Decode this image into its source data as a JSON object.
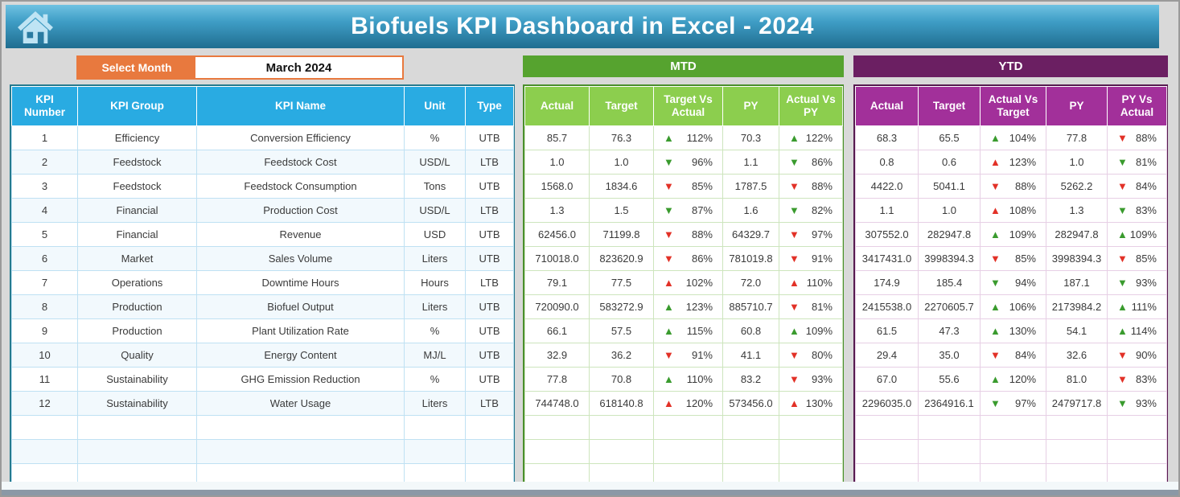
{
  "app": {
    "title": "Biofuels KPI Dashboard in Excel - 2024"
  },
  "month_selector": {
    "label": "Select Month",
    "value": "March 2024"
  },
  "kpi_table": {
    "headers": [
      "KPI Number",
      "KPI Group",
      "KPI Name",
      "Unit",
      "Type"
    ]
  },
  "mtd": {
    "title": "MTD",
    "headers": [
      "Actual",
      "Target",
      "Target Vs Actual",
      "PY",
      "Actual Vs PY"
    ]
  },
  "ytd": {
    "title": "YTD",
    "headers": [
      "Actual",
      "Target",
      "Actual Vs Target",
      "PY",
      "PY Vs Actual"
    ]
  },
  "empty_row_count": 3,
  "colors": {
    "banner_top": "#6fc2e2",
    "banner_bottom": "#206d90",
    "accent_orange": "#e8793e",
    "kpi_header_blue": "#29abe2",
    "mtd_bar_green": "#56a32f",
    "mtd_header_green": "#8cce4e",
    "ytd_bar_purple": "#6b1f62",
    "ytd_header_purple": "#a2309a",
    "trend_up_green": "#3a9b2e",
    "trend_down_red": "#e23127"
  },
  "rows": [
    {
      "number": "1",
      "group": "Efficiency",
      "name": "Conversion Efficiency",
      "unit": "%",
      "type": "UTB",
      "mtd": {
        "actual": "85.7",
        "target": "76.3",
        "target_vs_actual": {
          "dir": "up",
          "color": "green",
          "value": "112%"
        },
        "py": "70.3",
        "actual_vs_py": {
          "dir": "up",
          "color": "green",
          "value": "122%"
        }
      },
      "ytd": {
        "actual": "68.3",
        "target": "65.5",
        "actual_vs_target": {
          "dir": "up",
          "color": "green",
          "value": "104%"
        },
        "py": "77.8",
        "py_vs_actual": {
          "dir": "down",
          "color": "red",
          "value": "88%"
        }
      }
    },
    {
      "number": "2",
      "group": "Feedstock",
      "name": "Feedstock Cost",
      "unit": "USD/L",
      "type": "LTB",
      "mtd": {
        "actual": "1.0",
        "target": "1.0",
        "target_vs_actual": {
          "dir": "down",
          "color": "green",
          "value": "96%"
        },
        "py": "1.1",
        "actual_vs_py": {
          "dir": "down",
          "color": "green",
          "value": "86%"
        }
      },
      "ytd": {
        "actual": "0.8",
        "target": "0.6",
        "actual_vs_target": {
          "dir": "up",
          "color": "red",
          "value": "123%"
        },
        "py": "1.0",
        "py_vs_actual": {
          "dir": "down",
          "color": "green",
          "value": "81%"
        }
      }
    },
    {
      "number": "3",
      "group": "Feedstock",
      "name": "Feedstock Consumption",
      "unit": "Tons",
      "type": "UTB",
      "mtd": {
        "actual": "1568.0",
        "target": "1834.6",
        "target_vs_actual": {
          "dir": "down",
          "color": "red",
          "value": "85%"
        },
        "py": "1787.5",
        "actual_vs_py": {
          "dir": "down",
          "color": "red",
          "value": "88%"
        }
      },
      "ytd": {
        "actual": "4422.0",
        "target": "5041.1",
        "actual_vs_target": {
          "dir": "down",
          "color": "red",
          "value": "88%"
        },
        "py": "5262.2",
        "py_vs_actual": {
          "dir": "down",
          "color": "red",
          "value": "84%"
        }
      }
    },
    {
      "number": "4",
      "group": "Financial",
      "name": "Production Cost",
      "unit": "USD/L",
      "type": "LTB",
      "mtd": {
        "actual": "1.3",
        "target": "1.5",
        "target_vs_actual": {
          "dir": "down",
          "color": "green",
          "value": "87%"
        },
        "py": "1.6",
        "actual_vs_py": {
          "dir": "down",
          "color": "green",
          "value": "82%"
        }
      },
      "ytd": {
        "actual": "1.1",
        "target": "1.0",
        "actual_vs_target": {
          "dir": "up",
          "color": "red",
          "value": "108%"
        },
        "py": "1.3",
        "py_vs_actual": {
          "dir": "down",
          "color": "green",
          "value": "83%"
        }
      }
    },
    {
      "number": "5",
      "group": "Financial",
      "name": "Revenue",
      "unit": "USD",
      "type": "UTB",
      "mtd": {
        "actual": "62456.0",
        "target": "71199.8",
        "target_vs_actual": {
          "dir": "down",
          "color": "red",
          "value": "88%"
        },
        "py": "64329.7",
        "actual_vs_py": {
          "dir": "down",
          "color": "red",
          "value": "97%"
        }
      },
      "ytd": {
        "actual": "307552.0",
        "target": "282947.8",
        "actual_vs_target": {
          "dir": "up",
          "color": "green",
          "value": "109%"
        },
        "py": "282947.8",
        "py_vs_actual": {
          "dir": "up",
          "color": "green",
          "value": "109%"
        }
      }
    },
    {
      "number": "6",
      "group": "Market",
      "name": "Sales Volume",
      "unit": "Liters",
      "type": "UTB",
      "mtd": {
        "actual": "710018.0",
        "target": "823620.9",
        "target_vs_actual": {
          "dir": "down",
          "color": "red",
          "value": "86%"
        },
        "py": "781019.8",
        "actual_vs_py": {
          "dir": "down",
          "color": "red",
          "value": "91%"
        }
      },
      "ytd": {
        "actual": "3417431.0",
        "target": "3998394.3",
        "actual_vs_target": {
          "dir": "down",
          "color": "red",
          "value": "85%"
        },
        "py": "3998394.3",
        "py_vs_actual": {
          "dir": "down",
          "color": "red",
          "value": "85%"
        }
      }
    },
    {
      "number": "7",
      "group": "Operations",
      "name": "Downtime Hours",
      "unit": "Hours",
      "type": "LTB",
      "mtd": {
        "actual": "79.1",
        "target": "77.5",
        "target_vs_actual": {
          "dir": "up",
          "color": "red",
          "value": "102%"
        },
        "py": "72.0",
        "actual_vs_py": {
          "dir": "up",
          "color": "red",
          "value": "110%"
        }
      },
      "ytd": {
        "actual": "174.9",
        "target": "185.4",
        "actual_vs_target": {
          "dir": "down",
          "color": "green",
          "value": "94%"
        },
        "py": "187.1",
        "py_vs_actual": {
          "dir": "down",
          "color": "green",
          "value": "93%"
        }
      }
    },
    {
      "number": "8",
      "group": "Production",
      "name": "Biofuel Output",
      "unit": "Liters",
      "type": "UTB",
      "mtd": {
        "actual": "720090.0",
        "target": "583272.9",
        "target_vs_actual": {
          "dir": "up",
          "color": "green",
          "value": "123%"
        },
        "py": "885710.7",
        "actual_vs_py": {
          "dir": "down",
          "color": "red",
          "value": "81%"
        }
      },
      "ytd": {
        "actual": "2415538.0",
        "target": "2270605.7",
        "actual_vs_target": {
          "dir": "up",
          "color": "green",
          "value": "106%"
        },
        "py": "2173984.2",
        "py_vs_actual": {
          "dir": "up",
          "color": "green",
          "value": "111%"
        }
      }
    },
    {
      "number": "9",
      "group": "Production",
      "name": "Plant Utilization Rate",
      "unit": "%",
      "type": "UTB",
      "mtd": {
        "actual": "66.1",
        "target": "57.5",
        "target_vs_actual": {
          "dir": "up",
          "color": "green",
          "value": "115%"
        },
        "py": "60.8",
        "actual_vs_py": {
          "dir": "up",
          "color": "green",
          "value": "109%"
        }
      },
      "ytd": {
        "actual": "61.5",
        "target": "47.3",
        "actual_vs_target": {
          "dir": "up",
          "color": "green",
          "value": "130%"
        },
        "py": "54.1",
        "py_vs_actual": {
          "dir": "up",
          "color": "green",
          "value": "114%"
        }
      }
    },
    {
      "number": "10",
      "group": "Quality",
      "name": "Energy Content",
      "unit": "MJ/L",
      "type": "UTB",
      "mtd": {
        "actual": "32.9",
        "target": "36.2",
        "target_vs_actual": {
          "dir": "down",
          "color": "red",
          "value": "91%"
        },
        "py": "41.1",
        "actual_vs_py": {
          "dir": "down",
          "color": "red",
          "value": "80%"
        }
      },
      "ytd": {
        "actual": "29.4",
        "target": "35.0",
        "actual_vs_target": {
          "dir": "down",
          "color": "red",
          "value": "84%"
        },
        "py": "32.6",
        "py_vs_actual": {
          "dir": "down",
          "color": "red",
          "value": "90%"
        }
      }
    },
    {
      "number": "11",
      "group": "Sustainability",
      "name": "GHG Emission Reduction",
      "unit": "%",
      "type": "UTB",
      "mtd": {
        "actual": "77.8",
        "target": "70.8",
        "target_vs_actual": {
          "dir": "up",
          "color": "green",
          "value": "110%"
        },
        "py": "83.2",
        "actual_vs_py": {
          "dir": "down",
          "color": "red",
          "value": "93%"
        }
      },
      "ytd": {
        "actual": "67.0",
        "target": "55.6",
        "actual_vs_target": {
          "dir": "up",
          "color": "green",
          "value": "120%"
        },
        "py": "81.0",
        "py_vs_actual": {
          "dir": "down",
          "color": "red",
          "value": "83%"
        }
      }
    },
    {
      "number": "12",
      "group": "Sustainability",
      "name": "Water Usage",
      "unit": "Liters",
      "type": "LTB",
      "mtd": {
        "actual": "744748.0",
        "target": "618140.8",
        "target_vs_actual": {
          "dir": "up",
          "color": "red",
          "value": "120%"
        },
        "py": "573456.0",
        "actual_vs_py": {
          "dir": "up",
          "color": "red",
          "value": "130%"
        }
      },
      "ytd": {
        "actual": "2296035.0",
        "target": "2364916.1",
        "actual_vs_target": {
          "dir": "down",
          "color": "green",
          "value": "97%"
        },
        "py": "2479717.8",
        "py_vs_actual": {
          "dir": "down",
          "color": "green",
          "value": "93%"
        }
      }
    }
  ]
}
